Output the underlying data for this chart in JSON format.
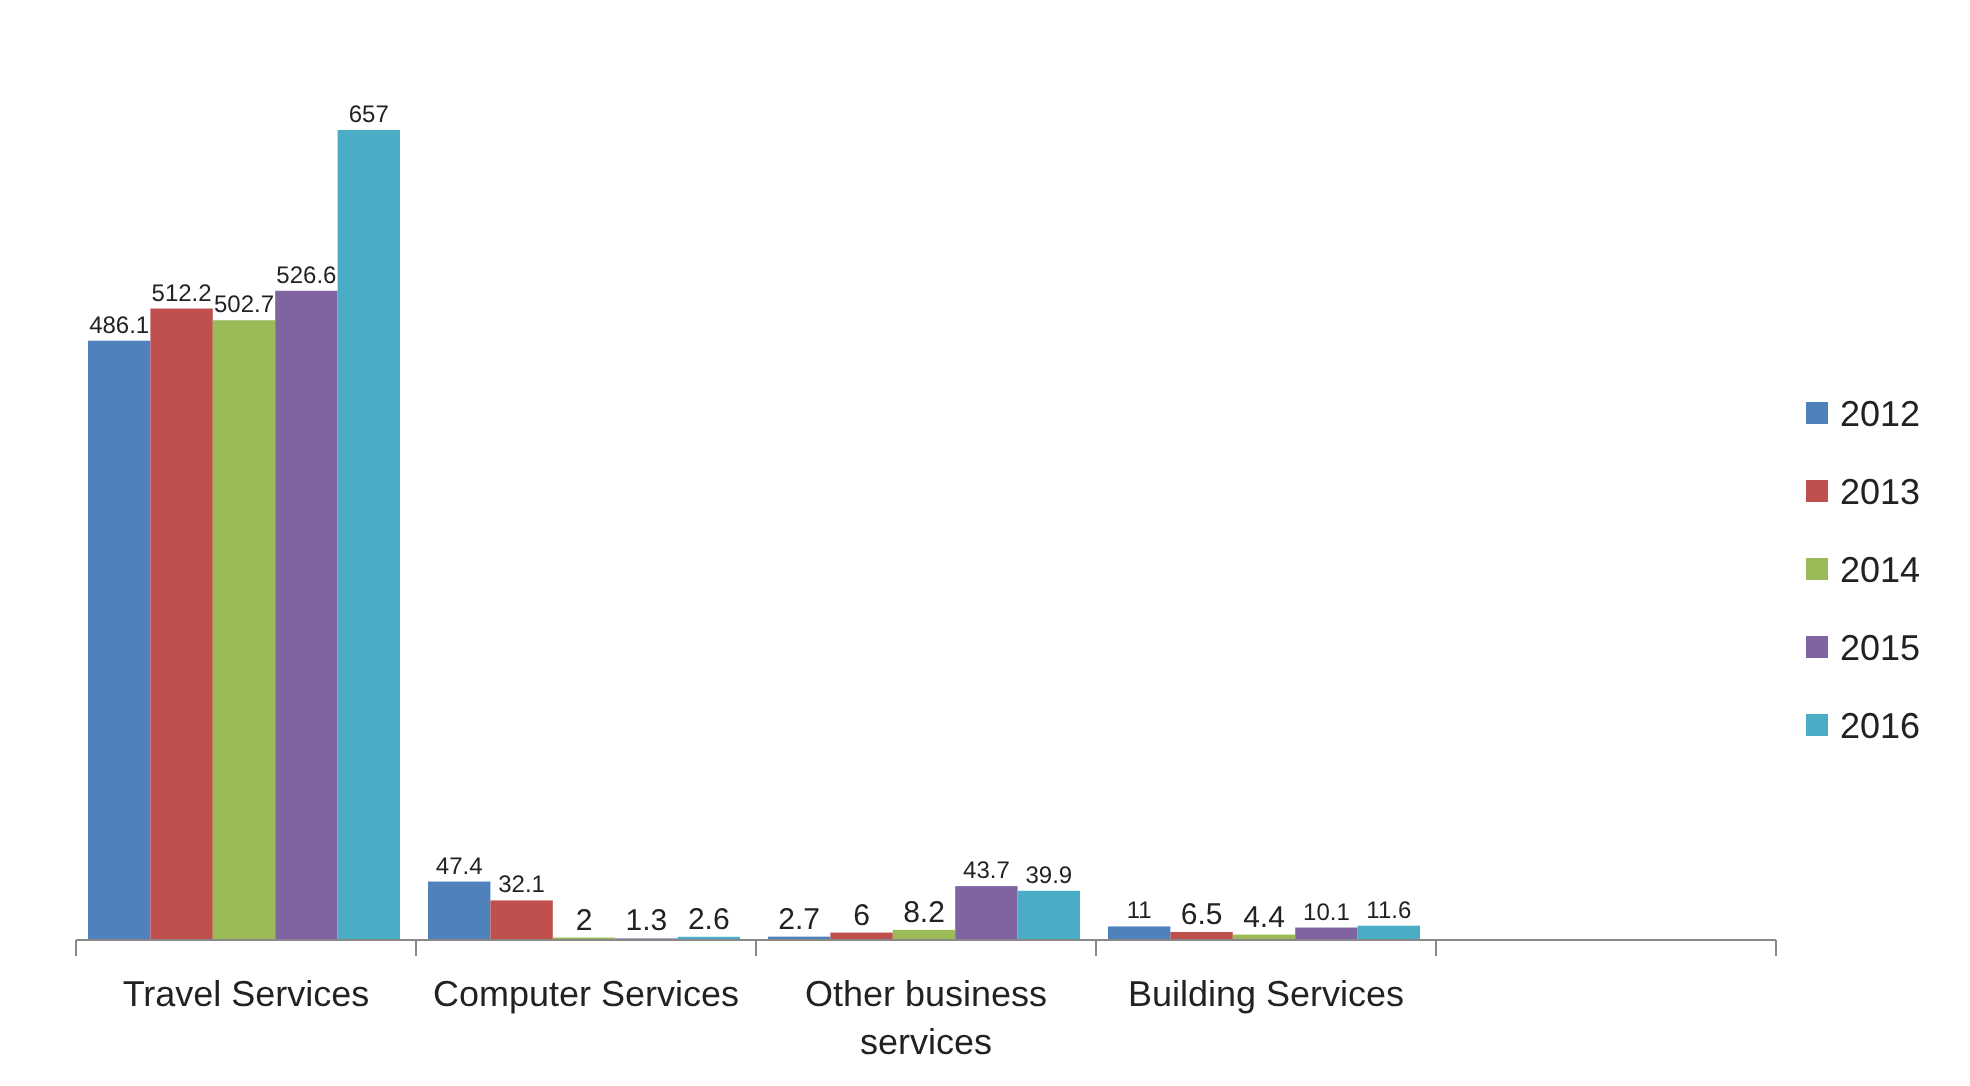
{
  "chart_data": {
    "type": "bar",
    "categories": [
      "Travel Services",
      "Computer Services",
      "Other business services",
      "Building Services",
      null
    ],
    "series": [
      {
        "name": "2012",
        "color": "#4f81bd",
        "values": [
          486.1,
          47.4,
          2.7,
          11,
          null
        ]
      },
      {
        "name": "2013",
        "color": "#c0504d",
        "values": [
          512.2,
          32.1,
          6,
          6.5,
          null
        ]
      },
      {
        "name": "2014",
        "color": "#9bbb59",
        "values": [
          502.7,
          2,
          8.2,
          4.4,
          null
        ]
      },
      {
        "name": "2015",
        "color": "#8064a2",
        "values": [
          526.6,
          1.3,
          43.7,
          10.1,
          null
        ]
      },
      {
        "name": "2016",
        "color": "#4bacc6",
        "values": [
          657,
          2.6,
          39.9,
          11.6,
          null
        ]
      }
    ],
    "data_labels": true,
    "legend": "right",
    "tick_labels": "x"
  }
}
